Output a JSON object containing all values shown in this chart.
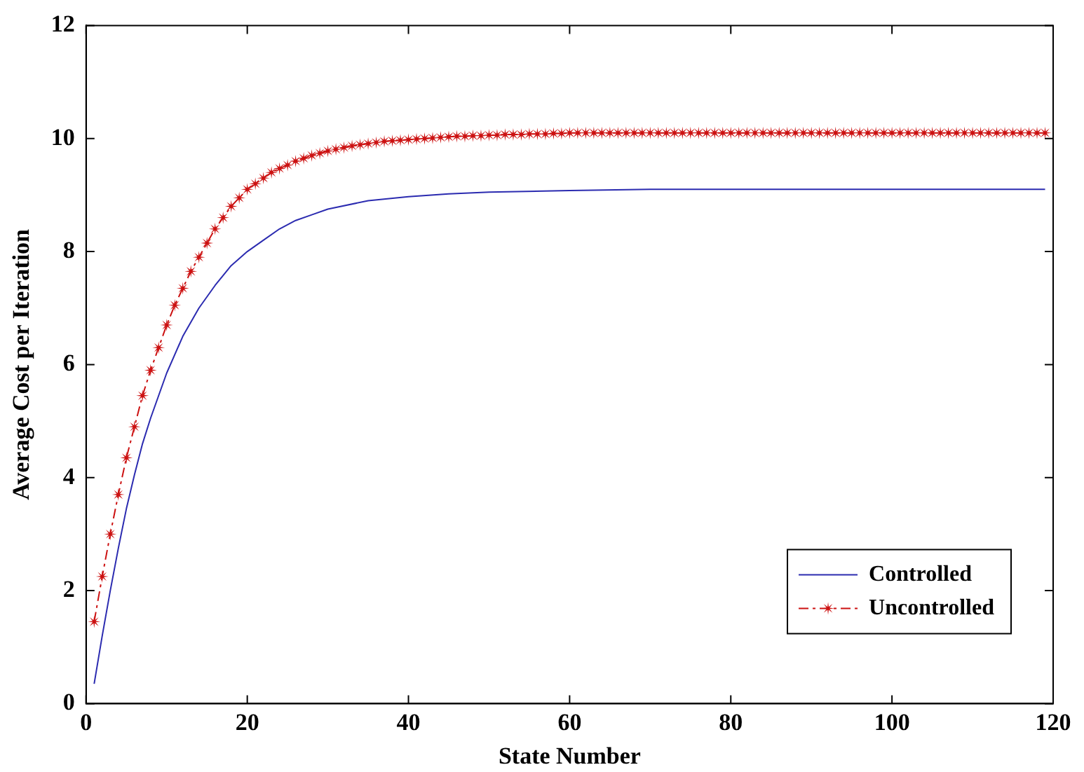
{
  "chart_data": {
    "type": "line",
    "xlabel": "State Number",
    "ylabel": "Average Cost per Iteration",
    "xlim": [
      0,
      120
    ],
    "xticks": [
      0,
      20,
      40,
      60,
      80,
      100,
      120
    ],
    "ylim": [
      0,
      12
    ],
    "yticks": [
      0,
      2,
      4,
      6,
      8,
      10,
      12
    ],
    "grid": false,
    "legend": "bottom right",
    "series": [
      {
        "name": "Controlled",
        "color": "#2b2bb0",
        "marker": "none",
        "line_style": "solid",
        "x": [
          1,
          2,
          3,
          4,
          5,
          6,
          7,
          8,
          9,
          10,
          12,
          14,
          16,
          18,
          20,
          22,
          24,
          26,
          28,
          30,
          35,
          40,
          45,
          50,
          60,
          70,
          80,
          100,
          119
        ],
        "values": [
          0.35,
          1.2,
          2.0,
          2.75,
          3.45,
          4.05,
          4.6,
          5.05,
          5.45,
          5.85,
          6.5,
          7.0,
          7.4,
          7.75,
          8.0,
          8.2,
          8.4,
          8.55,
          8.65,
          8.75,
          8.9,
          8.97,
          9.02,
          9.05,
          9.08,
          9.1,
          9.1,
          9.1,
          9.1
        ]
      },
      {
        "name": "Uncontrolled",
        "color": "#cc1111",
        "marker": "star",
        "line_style": "dashed",
        "x": [
          1,
          2,
          3,
          4,
          5,
          6,
          7,
          8,
          9,
          10,
          11,
          12,
          13,
          14,
          15,
          16,
          17,
          18,
          19,
          20,
          21,
          22,
          23,
          24,
          25,
          26,
          27,
          28,
          29,
          30,
          31,
          32,
          33,
          34,
          35,
          36,
          37,
          38,
          39,
          40,
          41,
          42,
          43,
          44,
          45,
          46,
          47,
          48,
          49,
          50,
          51,
          52,
          53,
          54,
          55,
          56,
          57,
          58,
          59,
          60,
          61,
          62,
          63,
          64,
          65,
          66,
          67,
          68,
          69,
          70,
          71,
          72,
          73,
          74,
          75,
          76,
          77,
          78,
          79,
          80,
          81,
          82,
          83,
          84,
          85,
          86,
          87,
          88,
          89,
          90,
          91,
          92,
          93,
          94,
          95,
          96,
          97,
          98,
          99,
          100,
          101,
          102,
          103,
          104,
          105,
          106,
          107,
          108,
          109,
          110,
          111,
          112,
          113,
          114,
          115,
          116,
          117,
          118,
          119
        ],
        "values": [
          1.45,
          2.25,
          3.0,
          3.7,
          4.35,
          4.9,
          5.45,
          5.9,
          6.3,
          6.7,
          7.05,
          7.35,
          7.65,
          7.9,
          8.15,
          8.4,
          8.6,
          8.8,
          8.95,
          9.1,
          9.2,
          9.3,
          9.4,
          9.47,
          9.53,
          9.6,
          9.65,
          9.7,
          9.74,
          9.78,
          9.81,
          9.84,
          9.87,
          9.89,
          9.91,
          9.93,
          9.95,
          9.96,
          9.97,
          9.98,
          9.99,
          10.0,
          10.01,
          10.02,
          10.03,
          10.04,
          10.04,
          10.05,
          10.05,
          10.06,
          10.06,
          10.07,
          10.07,
          10.07,
          10.08,
          10.08,
          10.08,
          10.09,
          10.09,
          10.1,
          10.1,
          10.1,
          10.1,
          10.1,
          10.1,
          10.1,
          10.1,
          10.1,
          10.1,
          10.1,
          10.1,
          10.1,
          10.1,
          10.1,
          10.1,
          10.1,
          10.1,
          10.1,
          10.1,
          10.1,
          10.1,
          10.1,
          10.1,
          10.1,
          10.1,
          10.1,
          10.1,
          10.1,
          10.1,
          10.1,
          10.1,
          10.1,
          10.1,
          10.1,
          10.1,
          10.1,
          10.1,
          10.1,
          10.1,
          10.1,
          10.1,
          10.1,
          10.1,
          10.1,
          10.1,
          10.1,
          10.1,
          10.1,
          10.1,
          10.1,
          10.1,
          10.1,
          10.1,
          10.1,
          10.1,
          10.1,
          10.1,
          10.1,
          10.1
        ]
      }
    ]
  }
}
